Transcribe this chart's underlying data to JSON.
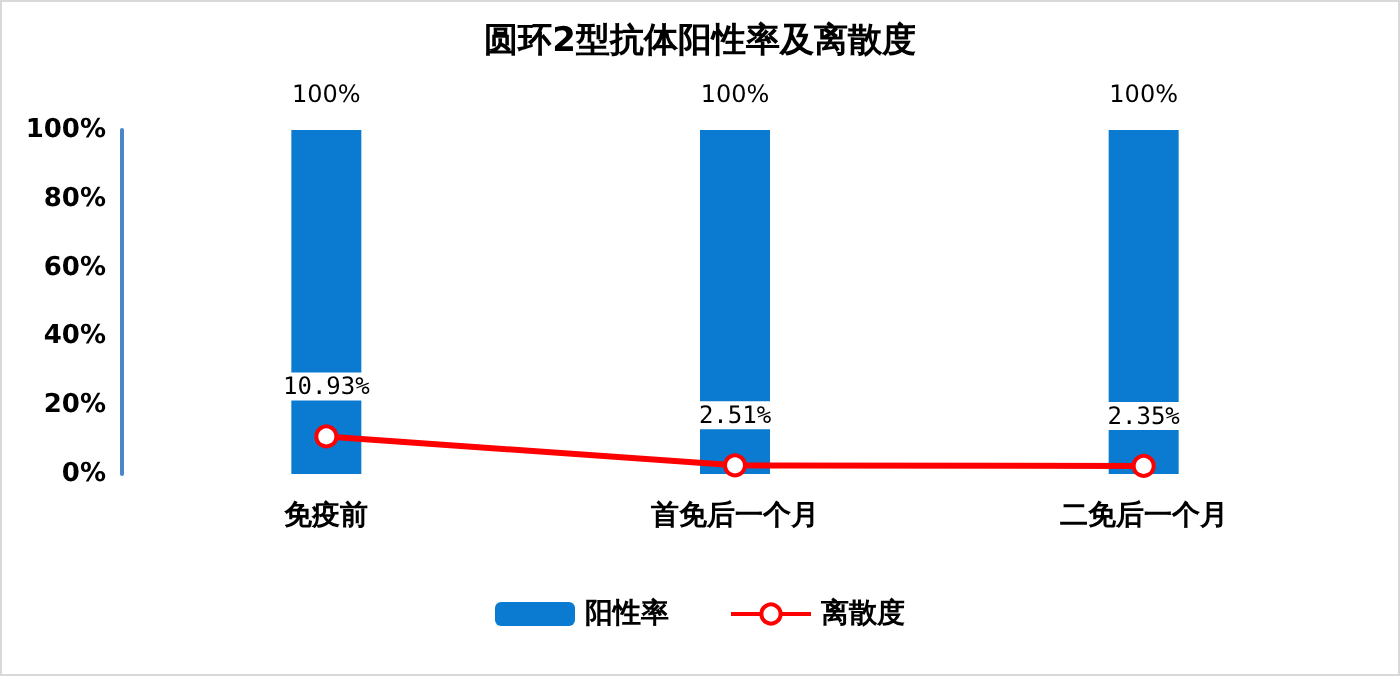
{
  "chart_data": {
    "type": "bar",
    "title": "圆环2型抗体阳性率及离散度",
    "categories": [
      "免疫前",
      "首免后一个月",
      "二免后一个月"
    ],
    "series": [
      {
        "name": "阳性率",
        "color": "#0a7bd0",
        "values": [
          100,
          100,
          100
        ],
        "value_labels": [
          "100%",
          "100%",
          "100%"
        ]
      },
      {
        "name": "离散度",
        "type": "line",
        "color": "#ff0000",
        "values": [
          10.93,
          2.51,
          2.35
        ],
        "value_labels": [
          "10.93%",
          "2.51%",
          "2.35%"
        ]
      }
    ],
    "ylim": [
      0,
      100
    ],
    "yticks": [
      {
        "value": 0,
        "label": "0%"
      },
      {
        "value": 20,
        "label": "20%"
      },
      {
        "value": 40,
        "label": "40%"
      },
      {
        "value": 60,
        "label": "60%"
      },
      {
        "value": 80,
        "label": "80%"
      },
      {
        "value": 100,
        "label": "100%"
      }
    ],
    "grid": false,
    "legend": "bottom",
    "marker": "circle",
    "line_style": "solid"
  }
}
